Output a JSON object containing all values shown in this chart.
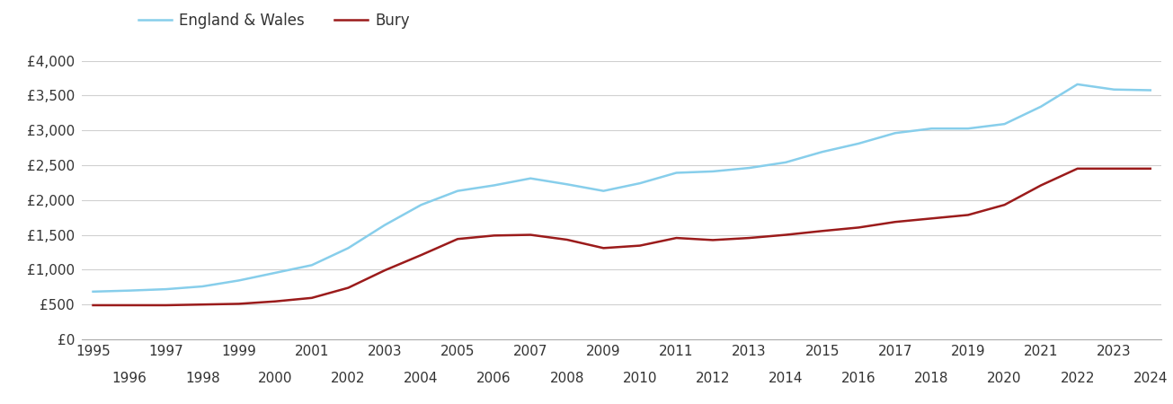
{
  "bury_label": "Bury",
  "ew_label": "England & Wales",
  "bury_color": "#9B1B1B",
  "ew_color": "#87CEEB",
  "years": [
    1995,
    1996,
    1997,
    1998,
    1999,
    2000,
    2001,
    2002,
    2003,
    2004,
    2005,
    2006,
    2007,
    2008,
    2009,
    2010,
    2011,
    2012,
    2013,
    2014,
    2015,
    2016,
    2017,
    2018,
    2019,
    2020,
    2021,
    2022,
    2023,
    2024
  ],
  "bury": [
    490,
    490,
    490,
    500,
    510,
    545,
    595,
    740,
    990,
    1210,
    1440,
    1490,
    1500,
    1430,
    1310,
    1345,
    1455,
    1425,
    1455,
    1500,
    1555,
    1605,
    1685,
    1735,
    1785,
    1930,
    2210,
    2450,
    2450,
    2450
  ],
  "england_wales": [
    685,
    700,
    720,
    760,
    845,
    955,
    1065,
    1310,
    1640,
    1930,
    2130,
    2210,
    2310,
    2225,
    2130,
    2240,
    2390,
    2410,
    2460,
    2540,
    2690,
    2810,
    2960,
    3025,
    3025,
    3090,
    3340,
    3660,
    3585,
    3575
  ],
  "ylim": [
    0,
    4000
  ],
  "yticks": [
    0,
    500,
    1000,
    1500,
    2000,
    2500,
    3000,
    3500,
    4000
  ],
  "ytick_labels": [
    "£0",
    "£500",
    "£1,000",
    "£1,500",
    "£2,000",
    "£2,500",
    "£3,000",
    "£3,500",
    "£4,000"
  ],
  "background_color": "#ffffff",
  "grid_color": "#d0d0d0",
  "line_width": 1.8,
  "legend_fontsize": 12,
  "tick_fontsize": 11
}
